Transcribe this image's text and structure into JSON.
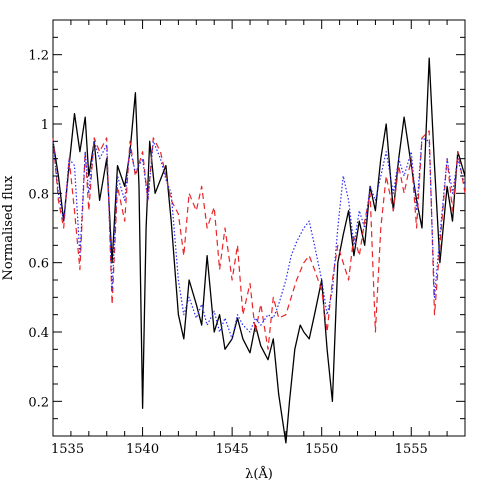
{
  "chart_data": {
    "type": "line",
    "xlabel": "λ(Å)",
    "ylabel": "Normalised flux",
    "xlim": [
      1535,
      1558
    ],
    "ylim": [
      0.1,
      1.3
    ],
    "x_ticks": [
      1535,
      1540,
      1545,
      1550,
      1555
    ],
    "y_ticks": [
      0.2,
      0.4,
      0.6,
      0.8,
      1,
      1.2
    ],
    "x_tick_labels": [
      "1535",
      "1540",
      "1545",
      "1550",
      "1555"
    ],
    "y_tick_labels": [
      "0.2",
      "0.4",
      "0.6",
      "0.8",
      "1",
      "1.2"
    ],
    "grid": false,
    "series": [
      {
        "style": "solid",
        "color": "#000000",
        "x": [
          1535.0,
          1535.3,
          1535.6,
          1535.9,
          1536.2,
          1536.5,
          1536.8,
          1537.0,
          1537.3,
          1537.6,
          1538.0,
          1538.3,
          1538.6,
          1539.0,
          1539.3,
          1539.6,
          1539.8,
          1540.0,
          1540.2,
          1540.4,
          1540.7,
          1541.0,
          1541.3,
          1541.6,
          1542.0,
          1542.3,
          1542.6,
          1543.0,
          1543.3,
          1543.6,
          1544.0,
          1544.3,
          1544.6,
          1545.0,
          1545.3,
          1545.6,
          1546.0,
          1546.3,
          1546.6,
          1547.0,
          1547.3,
          1547.6,
          1547.8,
          1548.0,
          1548.2,
          1548.5,
          1548.8,
          1549.0,
          1549.3,
          1549.6,
          1550.0,
          1550.3,
          1550.6,
          1550.9,
          1551.2,
          1551.5,
          1551.8,
          1552.1,
          1552.4,
          1552.7,
          1553.0,
          1553.3,
          1553.6,
          1554.0,
          1554.3,
          1554.6,
          1555.0,
          1555.3,
          1555.6,
          1556.0,
          1556.3,
          1556.6,
          1557.0,
          1557.3,
          1557.6,
          1558.0
        ],
        "values": [
          0.95,
          0.85,
          0.72,
          0.88,
          1.03,
          0.92,
          1.02,
          0.85,
          0.95,
          0.78,
          0.9,
          0.6,
          0.88,
          0.82,
          0.92,
          1.09,
          0.82,
          0.18,
          0.7,
          0.95,
          0.8,
          0.84,
          0.88,
          0.72,
          0.45,
          0.38,
          0.55,
          0.48,
          0.42,
          0.62,
          0.4,
          0.45,
          0.35,
          0.38,
          0.44,
          0.38,
          0.34,
          0.42,
          0.36,
          0.32,
          0.38,
          0.22,
          0.15,
          0.08,
          0.2,
          0.35,
          0.42,
          0.4,
          0.38,
          0.45,
          0.55,
          0.35,
          0.2,
          0.6,
          0.68,
          0.75,
          0.62,
          0.72,
          0.65,
          0.82,
          0.75,
          0.9,
          1.0,
          0.75,
          0.9,
          1.02,
          0.88,
          0.78,
          0.7,
          1.19,
          0.88,
          0.6,
          0.82,
          0.72,
          0.92,
          0.85
        ]
      },
      {
        "style": "dashed",
        "color": "#e8262a",
        "x": [
          1535.0,
          1535.3,
          1535.6,
          1535.9,
          1536.2,
          1536.5,
          1536.8,
          1537.0,
          1537.3,
          1537.6,
          1538.0,
          1538.3,
          1538.6,
          1539.0,
          1539.3,
          1539.6,
          1540.0,
          1540.3,
          1540.6,
          1541.0,
          1541.3,
          1541.6,
          1542.0,
          1542.3,
          1542.6,
          1543.0,
          1543.3,
          1543.6,
          1544.0,
          1544.3,
          1544.6,
          1545.0,
          1545.3,
          1545.6,
          1546.0,
          1546.3,
          1546.6,
          1547.0,
          1547.3,
          1547.6,
          1548.0,
          1548.3,
          1548.6,
          1549.0,
          1549.3,
          1549.6,
          1550.0,
          1550.3,
          1550.6,
          1550.9,
          1551.2,
          1551.5,
          1551.8,
          1552.1,
          1552.4,
          1552.7,
          1553.0,
          1553.3,
          1553.6,
          1554.0,
          1554.3,
          1554.6,
          1555.0,
          1555.3,
          1555.6,
          1556.0,
          1556.3,
          1556.6,
          1557.0,
          1557.3,
          1557.6,
          1558.0
        ],
        "values": [
          0.96,
          0.78,
          0.7,
          0.9,
          0.75,
          0.58,
          0.92,
          0.75,
          0.96,
          0.92,
          0.96,
          0.48,
          0.82,
          0.72,
          0.95,
          0.85,
          0.92,
          0.78,
          0.96,
          0.92,
          0.85,
          0.78,
          0.74,
          0.62,
          0.8,
          0.75,
          0.82,
          0.7,
          0.76,
          0.58,
          0.7,
          0.55,
          0.65,
          0.45,
          0.54,
          0.4,
          0.48,
          0.35,
          0.5,
          0.44,
          0.45,
          0.5,
          0.55,
          0.6,
          0.62,
          0.58,
          0.52,
          0.4,
          0.55,
          0.65,
          0.6,
          0.55,
          0.68,
          0.62,
          0.72,
          0.8,
          0.4,
          0.7,
          0.85,
          0.75,
          0.88,
          0.8,
          0.9,
          0.7,
          0.96,
          0.98,
          0.45,
          0.65,
          0.9,
          0.75,
          0.92,
          0.8
        ]
      },
      {
        "style": "dotted",
        "color": "#2a2af0",
        "x": [
          1535.0,
          1535.3,
          1535.6,
          1535.9,
          1536.2,
          1536.5,
          1536.8,
          1537.0,
          1537.3,
          1537.6,
          1538.0,
          1538.3,
          1538.6,
          1539.0,
          1539.3,
          1539.6,
          1540.0,
          1540.3,
          1540.6,
          1541.0,
          1541.3,
          1541.6,
          1542.0,
          1542.3,
          1542.6,
          1543.0,
          1543.3,
          1543.6,
          1544.0,
          1544.3,
          1544.6,
          1545.0,
          1545.3,
          1545.6,
          1546.0,
          1546.3,
          1546.6,
          1547.0,
          1547.3,
          1547.6,
          1548.0,
          1548.3,
          1548.6,
          1549.0,
          1549.3,
          1549.6,
          1550.0,
          1550.3,
          1550.6,
          1550.9,
          1551.2,
          1551.5,
          1551.8,
          1552.1,
          1552.4,
          1552.7,
          1553.0,
          1553.3,
          1553.6,
          1554.0,
          1554.3,
          1554.6,
          1555.0,
          1555.3,
          1555.6,
          1556.0,
          1556.3,
          1556.6,
          1557.0,
          1557.3,
          1557.6,
          1558.0
        ],
        "values": [
          0.95,
          0.8,
          0.72,
          0.9,
          0.88,
          0.62,
          0.92,
          0.8,
          0.95,
          0.9,
          0.94,
          0.52,
          0.85,
          0.78,
          0.93,
          0.86,
          0.9,
          0.78,
          0.95,
          0.9,
          0.84,
          0.8,
          0.55,
          0.45,
          0.5,
          0.44,
          0.48,
          0.42,
          0.46,
          0.4,
          0.44,
          0.38,
          0.45,
          0.42,
          0.4,
          0.44,
          0.42,
          0.45,
          0.44,
          0.48,
          0.55,
          0.62,
          0.66,
          0.7,
          0.72,
          0.65,
          0.55,
          0.45,
          0.52,
          0.7,
          0.85,
          0.78,
          0.65,
          0.75,
          0.7,
          0.82,
          0.78,
          0.85,
          0.92,
          0.8,
          0.9,
          0.85,
          0.92,
          0.75,
          0.96,
          0.95,
          0.5,
          0.68,
          0.9,
          0.8,
          0.9,
          0.82
        ]
      }
    ]
  }
}
